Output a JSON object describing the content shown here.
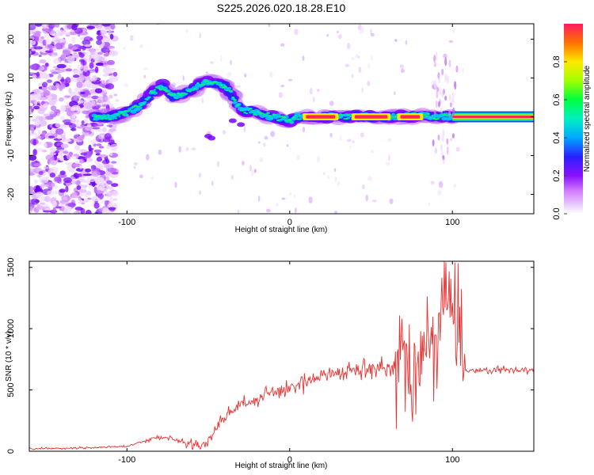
{
  "chart_data": [
    {
      "type": "heatmap",
      "title": "S225.2026.020.18.28.E10",
      "xlabel": "Height of straight line (km)",
      "ylabel": "Frequency (Hz)",
      "xlim": [
        -160,
        150
      ],
      "ylim": [
        -25,
        24
      ],
      "xticks": [
        -100,
        0,
        100
      ],
      "yticks": [
        -20,
        -10,
        0,
        10,
        20
      ],
      "colorbar": {
        "label": "Normalized spectral amplitude",
        "range": [
          0,
          1
        ],
        "ticks": [
          "0.0",
          "0.2",
          "0.4",
          "0.6",
          "0.8"
        ],
        "colors": [
          "#ffffff",
          "#d27cff",
          "#7a00ff",
          "#2a20ff",
          "#00c8ff",
          "#00ff40",
          "#ffe800",
          "#ff1a60"
        ]
      },
      "trace": {
        "name": "frequency ridge",
        "x": [
          -120,
          -110,
          -100,
          -92,
          -85,
          -78,
          -72,
          -66,
          -60,
          -55,
          -50,
          -45,
          -40,
          -36,
          -32,
          -28,
          -24,
          -20,
          -15,
          -10,
          -5,
          0,
          5,
          10,
          20,
          30,
          40,
          50,
          60,
          70,
          80,
          90,
          100,
          110,
          120,
          130,
          140,
          150
        ],
        "y": [
          0,
          0,
          1,
          3,
          6,
          8,
          5,
          6,
          7,
          8.5,
          9,
          8.5,
          8,
          6,
          3,
          1.5,
          1.5,
          1,
          0.5,
          0,
          -0.5,
          -1,
          0,
          0,
          0,
          0,
          0,
          0,
          0,
          0,
          0.5,
          0,
          0,
          0,
          0,
          0,
          0,
          0
        ]
      },
      "noise_x_extent": [
        -160,
        -115
      ]
    },
    {
      "type": "line",
      "title": "",
      "xlabel": "Height of straight line (km)",
      "ylabel": "SNR (10 * v/v)",
      "xlim": [
        -160,
        150
      ],
      "ylim": [
        0,
        1550
      ],
      "xticks": [
        -100,
        0,
        100
      ],
      "yticks": [
        0,
        500,
        1000,
        1500
      ],
      "color": "#e83030",
      "series": [
        {
          "name": "SNR",
          "x": [
            -160,
            -140,
            -120,
            -100,
            -85,
            -75,
            -65,
            -52,
            -45,
            -38,
            -30,
            -22,
            -15,
            -5,
            5,
            15,
            25,
            40,
            55,
            65,
            70,
            75,
            80,
            85,
            90,
            95,
            100,
            105,
            108,
            115,
            130,
            150
          ],
          "y": [
            20,
            25,
            30,
            40,
            100,
            120,
            60,
            50,
            200,
            300,
            380,
            410,
            460,
            500,
            520,
            600,
            640,
            660,
            690,
            650,
            900,
            500,
            700,
            1100,
            800,
            1400,
            1100,
            900,
            650,
            660,
            665,
            660
          ]
        }
      ]
    }
  ]
}
